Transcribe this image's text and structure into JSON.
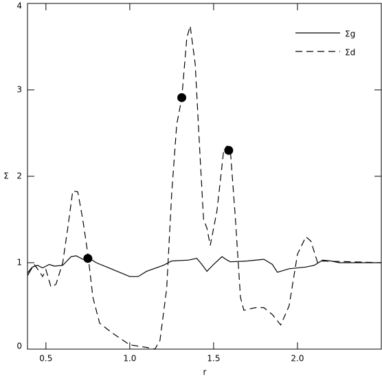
{
  "chart_data": {
    "type": "line",
    "xlabel": "r",
    "ylabel": "Σ",
    "xlim": [
      0.39,
      2.5
    ],
    "ylim": [
      0,
      4
    ],
    "xticks": [
      {
        "value": 0.5,
        "label": "0.5"
      },
      {
        "value": 1.0,
        "label": "1.0"
      },
      {
        "value": 1.5,
        "label": "1.5"
      },
      {
        "value": 2.0,
        "label": "2.0"
      }
    ],
    "yticks": [
      0,
      1,
      2,
      3,
      4
    ],
    "legend": "upper right",
    "series": [
      {
        "name": "Σg",
        "color": "#000000",
        "dash": "none",
        "type": "line",
        "x": [
          0.39,
          0.42,
          0.45,
          0.48,
          0.52,
          0.55,
          0.6,
          0.65,
          0.68,
          0.72,
          0.76,
          0.8,
          0.9,
          1.0,
          1.05,
          1.1,
          1.2,
          1.25,
          1.35,
          1.4,
          1.43,
          1.46,
          1.5,
          1.55,
          1.58,
          1.6,
          1.7,
          1.8,
          1.85,
          1.88,
          1.95,
          2.05,
          2.1,
          2.15,
          2.2,
          2.25,
          2.5
        ],
        "values": [
          0.85,
          0.95,
          0.97,
          0.94,
          0.98,
          0.96,
          0.97,
          1.07,
          1.08,
          1.04,
          1.05,
          1.0,
          0.92,
          0.84,
          0.84,
          0.9,
          0.97,
          1.02,
          1.03,
          1.05,
          0.98,
          0.9,
          0.98,
          1.07,
          1.03,
          1.01,
          1.02,
          1.04,
          0.98,
          0.89,
          0.93,
          0.95,
          0.97,
          1.03,
          1.02,
          1.0,
          1.0
        ]
      },
      {
        "name": "Σd",
        "color": "#000000",
        "dash": "10,6",
        "type": "line",
        "x": [
          0.39,
          0.43,
          0.46,
          0.48,
          0.5,
          0.53,
          0.56,
          0.6,
          0.63,
          0.66,
          0.69,
          0.72,
          0.75,
          0.78,
          0.82,
          0.9,
          1.0,
          1.1,
          1.15,
          1.18,
          1.22,
          1.25,
          1.28,
          1.31,
          1.34,
          1.36,
          1.39,
          1.42,
          1.44,
          1.46,
          1.48,
          1.52,
          1.56,
          1.58,
          1.6,
          1.63,
          1.66,
          1.68,
          1.75,
          1.8,
          1.85,
          1.9,
          1.95,
          2.0,
          2.05,
          2.08,
          2.12,
          2.15,
          2.5
        ],
        "values": [
          0.88,
          0.98,
          0.9,
          0.84,
          0.92,
          0.72,
          0.75,
          1.0,
          1.4,
          1.83,
          1.82,
          1.5,
          1.1,
          0.6,
          0.3,
          0.18,
          0.05,
          0.02,
          0.0,
          0.1,
          0.7,
          1.8,
          2.6,
          2.9,
          3.6,
          3.74,
          3.3,
          2.2,
          1.5,
          1.4,
          1.2,
          1.6,
          2.3,
          2.35,
          2.3,
          1.5,
          0.6,
          0.45,
          0.48,
          0.48,
          0.4,
          0.28,
          0.5,
          1.1,
          1.3,
          1.25,
          1.0,
          1.02,
          1.0
        ]
      },
      {
        "type": "scatter",
        "color": "#000000",
        "x": [
          0.75,
          1.31,
          1.59
        ],
        "values": [
          1.05,
          2.91,
          2.3
        ]
      }
    ]
  }
}
